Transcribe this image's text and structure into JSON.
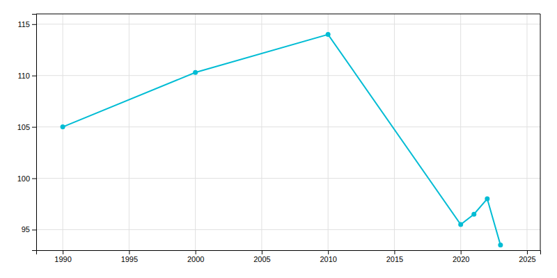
{
  "chart_data": {
    "type": "line",
    "x": [
      1990,
      2000,
      2010,
      2020,
      2021,
      2022,
      2023
    ],
    "values": [
      105,
      110.3,
      114,
      95.5,
      96.5,
      98,
      93.5
    ],
    "color": "#00BCD4",
    "marker": "circle",
    "xlim": [
      1988,
      2026
    ],
    "ylim": [
      93,
      116
    ],
    "xticks": [
      1990,
      1995,
      2000,
      2005,
      2010,
      2015,
      2020,
      2025
    ],
    "yticks": [
      95,
      100,
      105,
      110,
      115
    ],
    "grid": true
  }
}
